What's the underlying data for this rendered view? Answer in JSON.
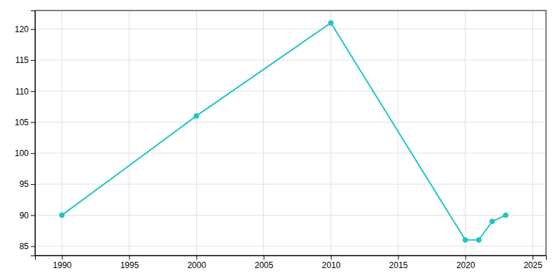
{
  "chart_data": {
    "type": "line",
    "x": [
      1990,
      2000,
      2010,
      2020,
      2021,
      2022,
      2023
    ],
    "values": [
      90,
      106,
      121,
      86,
      86,
      89,
      90
    ],
    "color": "#22c4c4",
    "marker": "circle",
    "xlim": [
      1988,
      2026
    ],
    "ylim": [
      83.5,
      123
    ],
    "xticks": [
      1990,
      1995,
      2000,
      2005,
      2010,
      2015,
      2020,
      2025
    ],
    "yticks": [
      85,
      90,
      95,
      100,
      105,
      110,
      115,
      120
    ],
    "grid": true
  }
}
